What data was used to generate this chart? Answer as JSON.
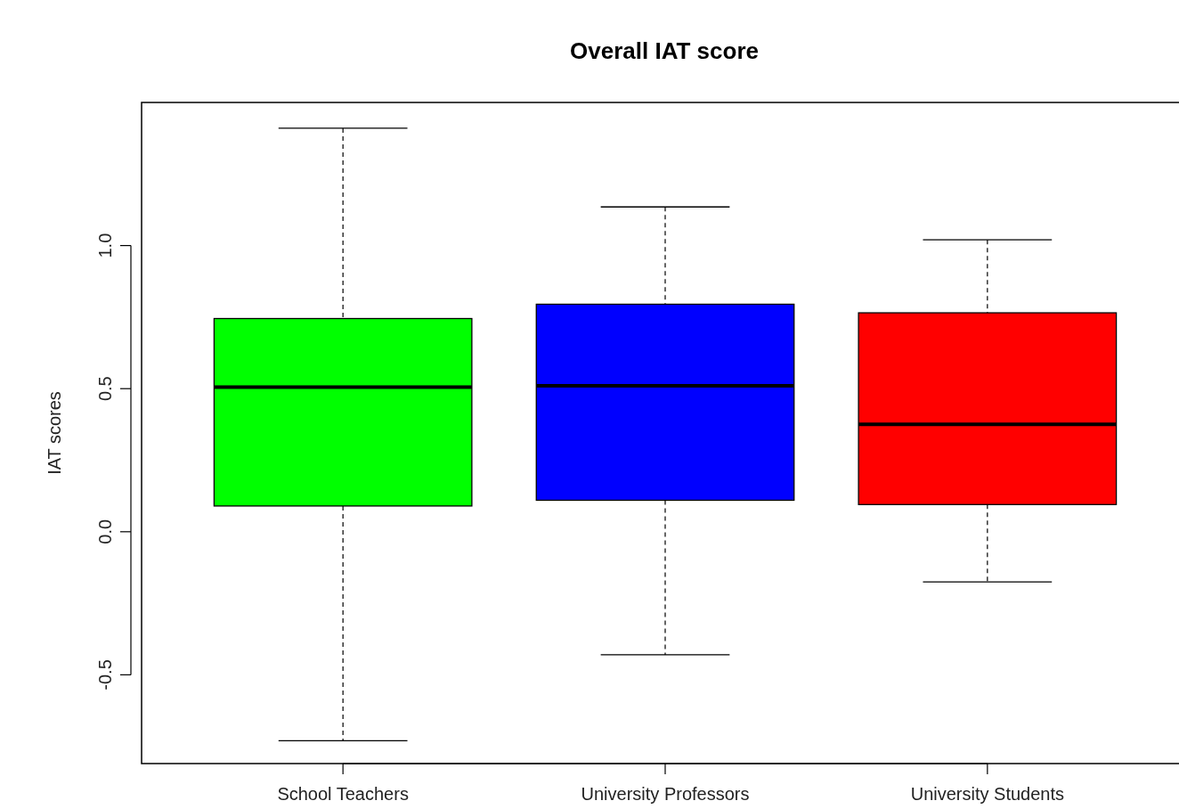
{
  "chart_data": {
    "type": "box",
    "title": "Overall IAT score",
    "ylabel": "IAT scores",
    "categories": [
      "School Teachers",
      "University Professors",
      "University Students"
    ],
    "colors": [
      "#00ff00",
      "#0000ff",
      "#ff0000"
    ],
    "boxes": [
      {
        "low": -0.73,
        "q1": 0.09,
        "median": 0.505,
        "q3": 0.745,
        "high": 1.41
      },
      {
        "low": -0.43,
        "q1": 0.11,
        "median": 0.51,
        "q3": 0.795,
        "high": 1.135
      },
      {
        "low": -0.175,
        "q1": 0.095,
        "median": 0.375,
        "q3": 0.765,
        "high": 1.02
      }
    ],
    "ylim": [
      -0.81,
      1.5
    ],
    "yticks": [
      {
        "value": -0.5,
        "label": "-0.5"
      },
      {
        "value": 0,
        "label": "0.0"
      },
      {
        "value": 0.5,
        "label": "0.5"
      },
      {
        "value": 1,
        "label": "1.0"
      }
    ],
    "grid": false
  }
}
